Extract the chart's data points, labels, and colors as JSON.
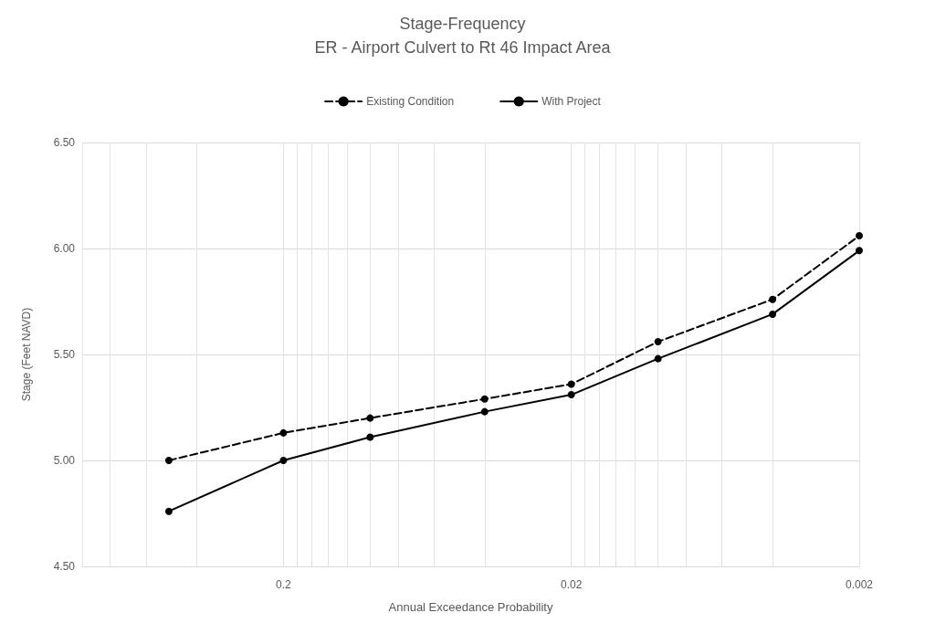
{
  "chart_data": {
    "type": "line",
    "title": "Stage-Frequency",
    "subtitle": "ER - Airport Culvert to Rt 46 Impact Area",
    "xlabel": "Annual Exceedance Probability",
    "ylabel": "Stage (Feet NAVD)",
    "x": [
      0.5,
      0.2,
      0.1,
      0.04,
      0.02,
      0.01,
      0.004,
      0.002
    ],
    "series": [
      {
        "name": "Existing Condition",
        "color": "#000000",
        "line_style": "dashed",
        "values": [
          5.0,
          5.13,
          5.2,
          5.29,
          5.36,
          5.56,
          5.76,
          6.06
        ]
      },
      {
        "name": "With Project",
        "color": "#000000",
        "line_style": "solid",
        "values": [
          4.76,
          5.0,
          5.11,
          5.23,
          5.31,
          5.48,
          5.69,
          5.99
        ]
      }
    ],
    "log": "x",
    "xlim": [
      1,
      0.002
    ],
    "xticks": [
      {
        "value": 1,
        "label": null
      },
      {
        "value": 0.8,
        "label": null
      },
      {
        "value": 0.6,
        "label": null
      },
      {
        "value": 0.4,
        "label": null
      },
      0.2,
      {
        "value": 0.18,
        "label": null
      },
      {
        "value": 0.16,
        "label": null
      },
      {
        "value": 0.14,
        "label": null
      },
      {
        "value": 0.12,
        "label": null
      },
      {
        "value": 0.1,
        "label": null
      },
      {
        "value": 0.08,
        "label": null
      },
      {
        "value": 0.06,
        "label": null
      },
      {
        "value": 0.04,
        "label": null
      },
      0.02,
      {
        "value": 0.018,
        "label": null
      },
      {
        "value": 0.016,
        "label": null
      },
      {
        "value": 0.014,
        "label": null
      },
      {
        "value": 0.012,
        "label": null
      },
      {
        "value": 0.01,
        "label": null
      },
      {
        "value": 0.008,
        "label": null
      },
      {
        "value": 0.006,
        "label": null
      },
      {
        "value": 0.004,
        "label": null
      },
      0.002
    ],
    "ylim": [
      4.5,
      6.5
    ],
    "yticks": [
      {
        "value": 4.5,
        "label": "4.50"
      },
      {
        "value": 5,
        "label": "5.00"
      },
      {
        "value": 5.5,
        "label": "5.50"
      },
      {
        "value": 6,
        "label": "6.00"
      },
      {
        "value": 6.5,
        "label": "6.50"
      }
    ],
    "grid": true,
    "legend": "top",
    "marker": "circle"
  }
}
